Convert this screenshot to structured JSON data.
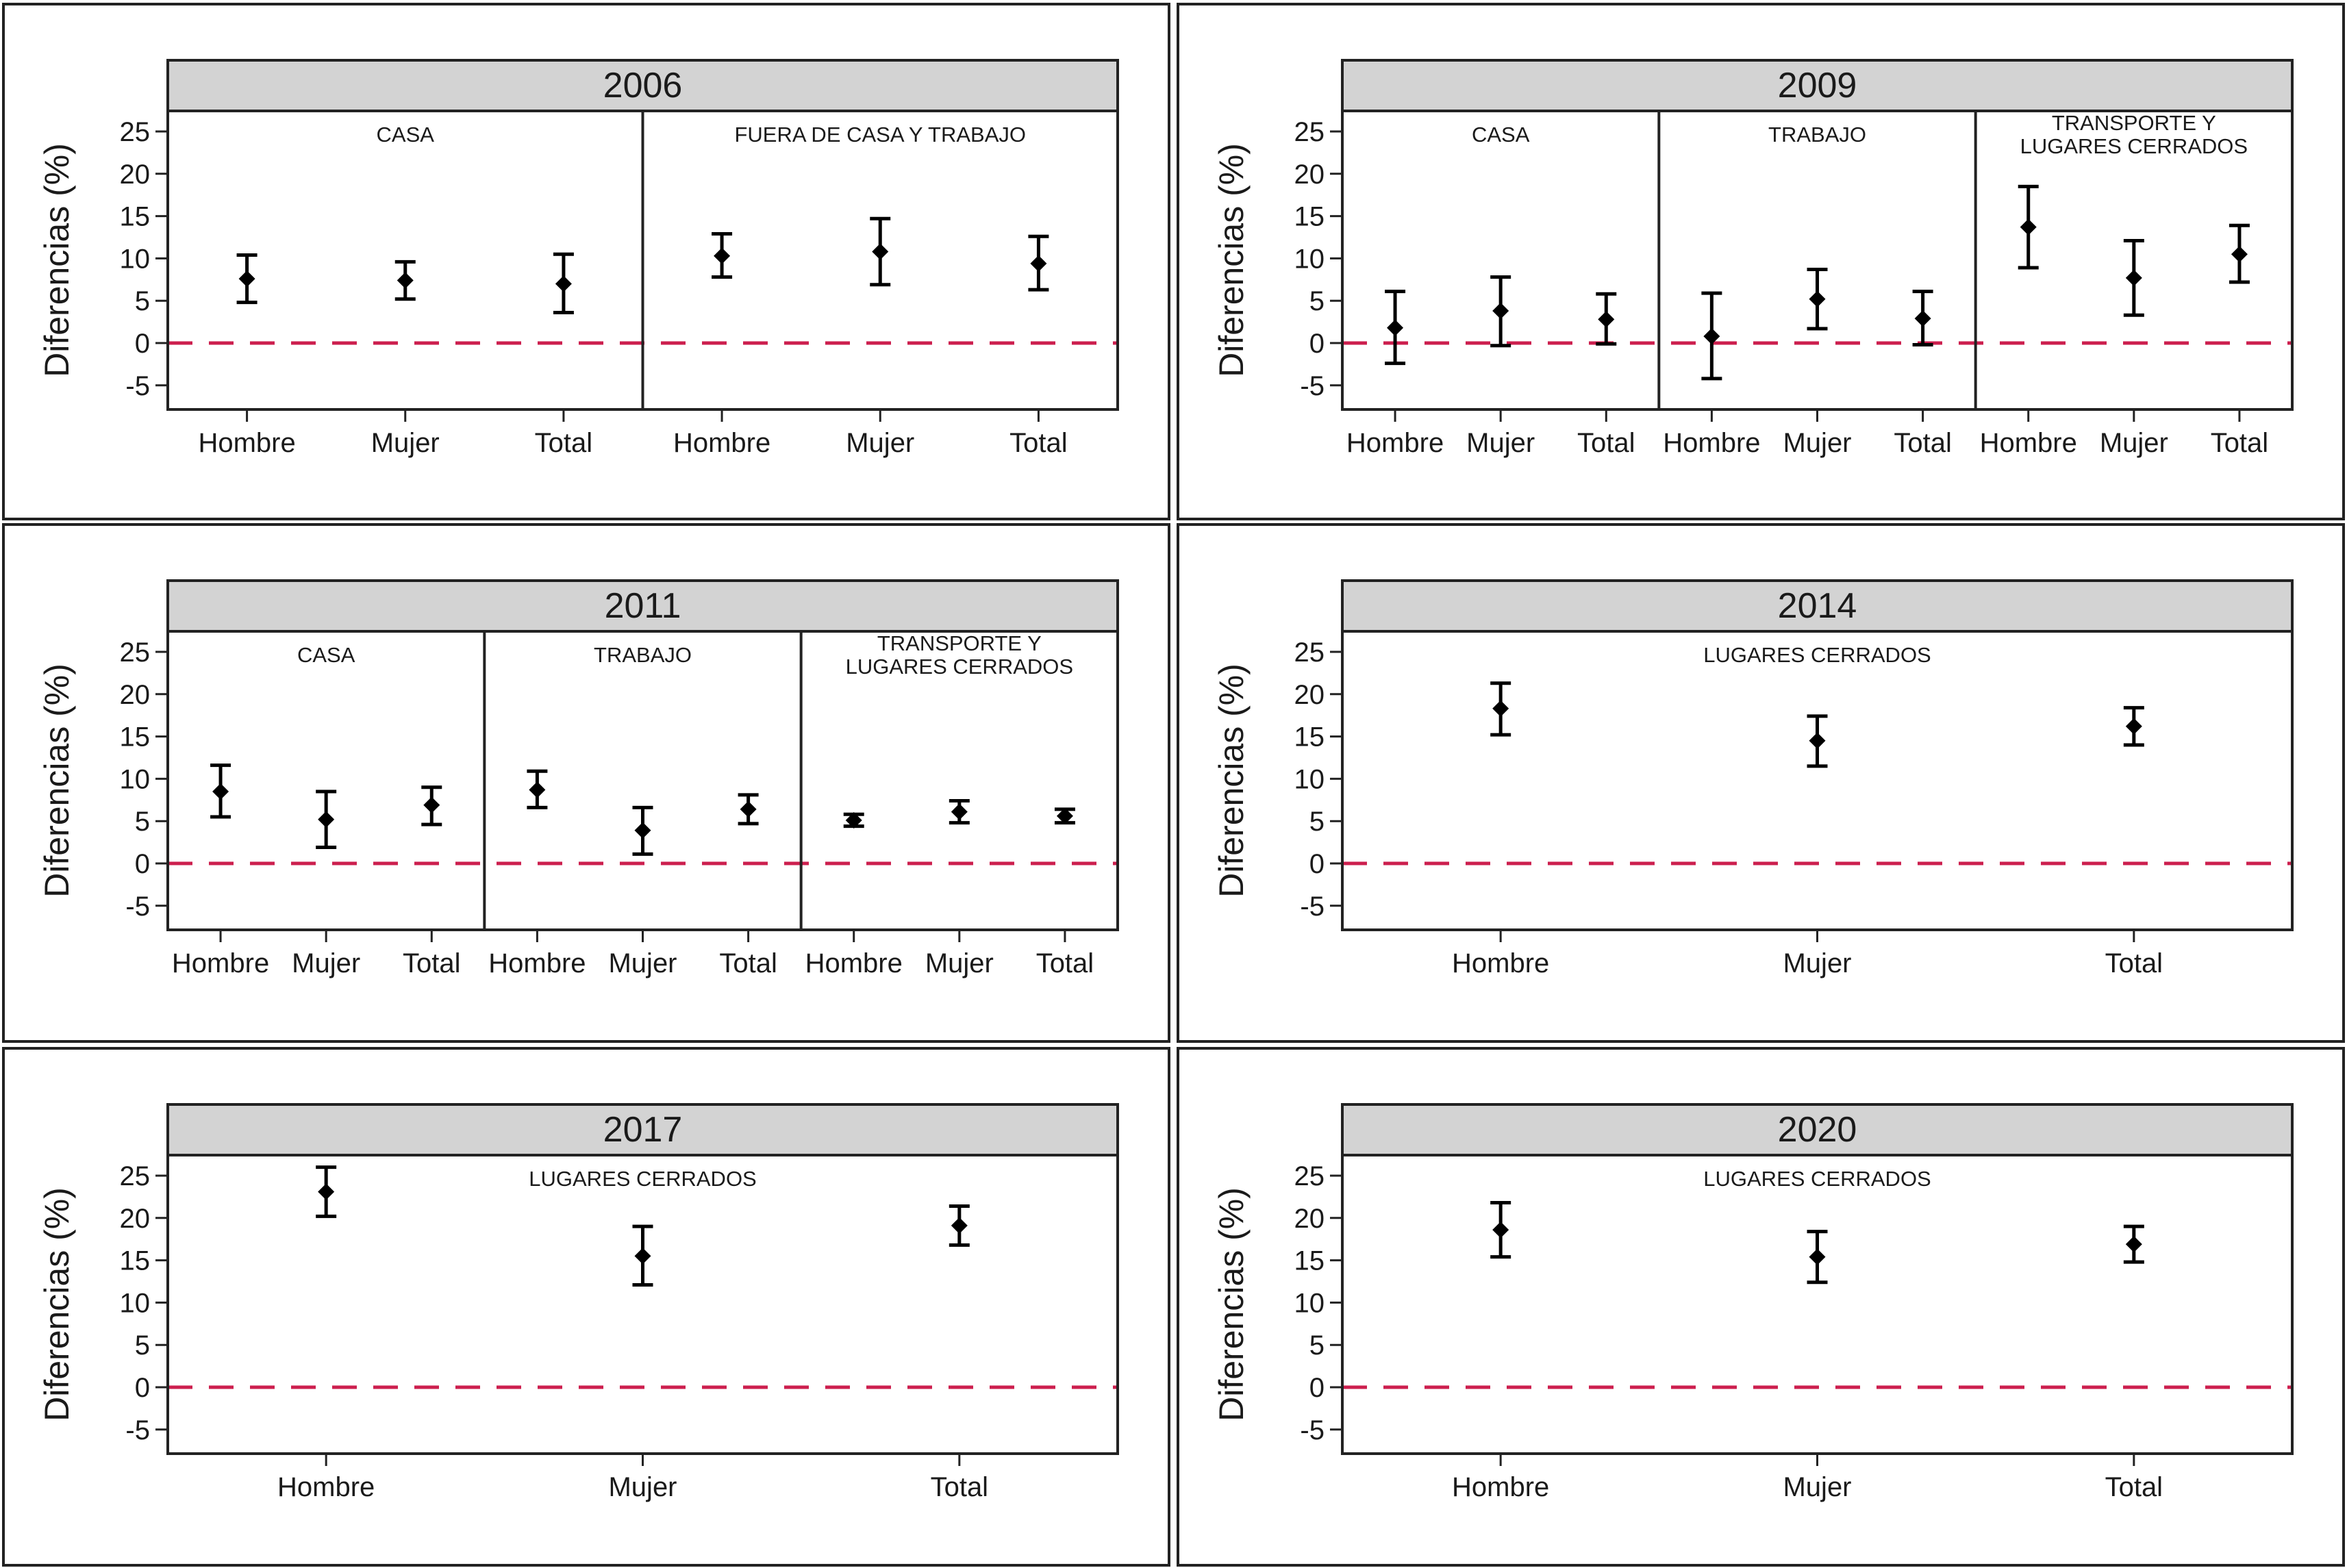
{
  "y_axis_label": "Diferencias (%)",
  "y_ticks": [
    "25",
    "20",
    "15",
    "10",
    "5",
    "0",
    "-5"
  ],
  "colors": {
    "reference_line": "#cc1f4e",
    "strip_background": "#d3d3d3",
    "marker": "#000000",
    "frame": "#222222"
  },
  "chart_data": [
    {
      "type": "scatter",
      "title": "2006",
      "ylabel": "Diferencias (%)",
      "ylim": [
        -7.5,
        28
      ],
      "reference_line": 0,
      "panels": [
        {
          "label": "CASA",
          "categories": [
            "Hombre",
            "Mujer",
            "Total"
          ],
          "estimates": [
            7.6,
            7.4,
            7.0
          ],
          "lower": [
            4.8,
            5.2,
            3.6
          ],
          "upper": [
            10.4,
            9.6,
            10.5
          ]
        },
        {
          "label": "FUERA DE CASA Y TRABAJO",
          "categories": [
            "Hombre",
            "Mujer",
            "Total"
          ],
          "estimates": [
            10.3,
            10.8,
            9.4
          ],
          "lower": [
            7.8,
            6.9,
            6.3
          ],
          "upper": [
            12.9,
            14.7,
            12.6
          ]
        }
      ]
    },
    {
      "type": "scatter",
      "title": "2009",
      "ylabel": "Diferencias (%)",
      "ylim": [
        -7.5,
        28
      ],
      "reference_line": 0,
      "panels": [
        {
          "label": "CASA",
          "categories": [
            "Hombre",
            "Mujer",
            "Total"
          ],
          "estimates": [
            1.8,
            3.8,
            2.8
          ],
          "lower": [
            -2.4,
            -0.3,
            -0.1
          ],
          "upper": [
            6.1,
            7.8,
            5.8
          ]
        },
        {
          "label": "TRABAJO",
          "categories": [
            "Hombre",
            "Mujer",
            "Total"
          ],
          "estimates": [
            0.8,
            5.2,
            2.9
          ],
          "lower": [
            -4.2,
            1.7,
            -0.2
          ],
          "upper": [
            5.9,
            8.7,
            6.1
          ]
        },
        {
          "label": "TRANSPORTE Y\nLUGARES CERRADOS",
          "categories": [
            "Hombre",
            "Mujer",
            "Total"
          ],
          "estimates": [
            13.7,
            7.7,
            10.5
          ],
          "lower": [
            8.9,
            3.3,
            7.2
          ],
          "upper": [
            18.5,
            12.1,
            13.9
          ]
        }
      ]
    },
    {
      "type": "scatter",
      "title": "2011",
      "ylabel": "Diferencias (%)",
      "ylim": [
        -7.5,
        28
      ],
      "reference_line": 0,
      "panels": [
        {
          "label": "CASA",
          "categories": [
            "Hombre",
            "Mujer",
            "Total"
          ],
          "estimates": [
            8.5,
            5.2,
            6.9
          ],
          "lower": [
            5.5,
            1.9,
            4.6
          ],
          "upper": [
            11.6,
            8.5,
            9.0
          ]
        },
        {
          "label": "TRABAJO",
          "categories": [
            "Hombre",
            "Mujer",
            "Total"
          ],
          "estimates": [
            8.7,
            3.9,
            6.4
          ],
          "lower": [
            6.6,
            1.1,
            4.7
          ],
          "upper": [
            10.9,
            6.6,
            8.1
          ]
        },
        {
          "label": "TRANSPORTE Y\nLUGARES CERRADOS",
          "categories": [
            "Hombre",
            "Mujer",
            "Total"
          ],
          "estimates": [
            5.1,
            6.1,
            5.6
          ],
          "lower": [
            4.4,
            4.8,
            4.8
          ],
          "upper": [
            5.8,
            7.4,
            6.4
          ]
        }
      ]
    },
    {
      "type": "scatter",
      "title": "2014",
      "ylabel": "Diferencias (%)",
      "ylim": [
        -7.5,
        28
      ],
      "reference_line": 0,
      "panels": [
        {
          "label": "LUGARES CERRADOS",
          "categories": [
            "Hombre",
            "Mujer",
            "Total"
          ],
          "estimates": [
            18.3,
            14.5,
            16.2
          ],
          "lower": [
            15.2,
            11.5,
            14.0
          ],
          "upper": [
            21.3,
            17.4,
            18.4
          ]
        }
      ]
    },
    {
      "type": "scatter",
      "title": "2017",
      "ylabel": "Diferencias (%)",
      "ylim": [
        -7.5,
        28
      ],
      "reference_line": 0,
      "panels": [
        {
          "label": "LUGARES CERRADOS",
          "categories": [
            "Hombre",
            "Mujer",
            "Total"
          ],
          "estimates": [
            23.1,
            15.5,
            19.1
          ],
          "lower": [
            20.2,
            12.1,
            16.8
          ],
          "upper": [
            26.0,
            19.0,
            21.4
          ]
        }
      ]
    },
    {
      "type": "scatter",
      "title": "2020",
      "ylabel": "Diferencias (%)",
      "ylim": [
        -7.5,
        28
      ],
      "reference_line": 0,
      "panels": [
        {
          "label": "LUGARES CERRADOS",
          "categories": [
            "Hombre",
            "Mujer",
            "Total"
          ],
          "estimates": [
            18.6,
            15.4,
            16.9
          ],
          "lower": [
            15.4,
            12.4,
            14.8
          ],
          "upper": [
            21.8,
            18.4,
            19.0
          ]
        }
      ]
    }
  ]
}
